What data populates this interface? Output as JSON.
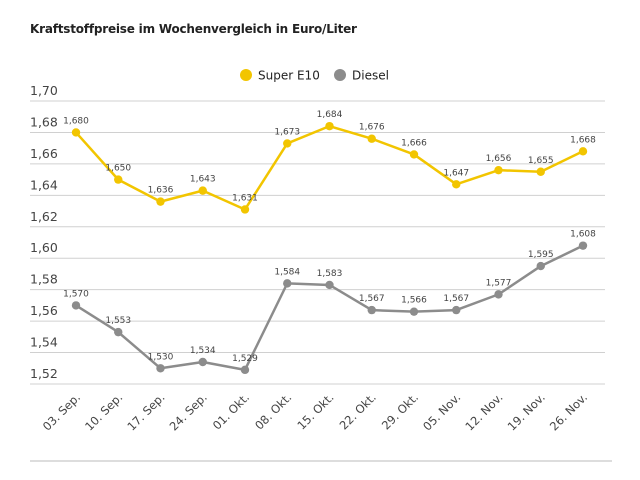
{
  "chart_data": {
    "type": "line",
    "title": "Kraftstoffpreise im Wochenvergleich in Euro/Liter",
    "xlabel": "",
    "ylabel": "",
    "categories": [
      "03. Sep.",
      "10. Sep.",
      "17. Sep.",
      "24. Sep.",
      "01. Okt.",
      "08. Okt.",
      "15. Okt.",
      "22. Okt.",
      "29. Okt.",
      "05. Nov.",
      "12. Nov.",
      "19. Nov.",
      "26. Nov."
    ],
    "ylim": [
      1.52,
      1.7
    ],
    "yticks": [
      "1,52",
      "1,54",
      "1,56",
      "1,58",
      "1,60",
      "1,62",
      "1,64",
      "1,66",
      "1,68",
      "1,70"
    ],
    "grid": true,
    "legend_position": "top-center",
    "series": [
      {
        "name": "Super E10",
        "color": "#f2c500",
        "values": [
          1.68,
          1.65,
          1.636,
          1.643,
          1.631,
          1.673,
          1.684,
          1.676,
          1.666,
          1.647,
          1.656,
          1.655,
          1.668
        ],
        "labels": [
          "1,680",
          "1,650",
          "1,636",
          "1,643",
          "1,631",
          "1,673",
          "1,684",
          "1,676",
          "1,666",
          "1,647",
          "1,656",
          "1,655",
          "1,668"
        ]
      },
      {
        "name": "Diesel",
        "color": "#8c8c8c",
        "values": [
          1.57,
          1.553,
          1.53,
          1.534,
          1.529,
          1.584,
          1.583,
          1.567,
          1.566,
          1.567,
          1.577,
          1.595,
          1.608
        ],
        "labels": [
          "1,570",
          "1,553",
          "1,530",
          "1,534",
          "1,529",
          "1,584",
          "1,583",
          "1,567",
          "1,566",
          "1,567",
          "1,577",
          "1,595",
          "1,608"
        ]
      }
    ]
  }
}
